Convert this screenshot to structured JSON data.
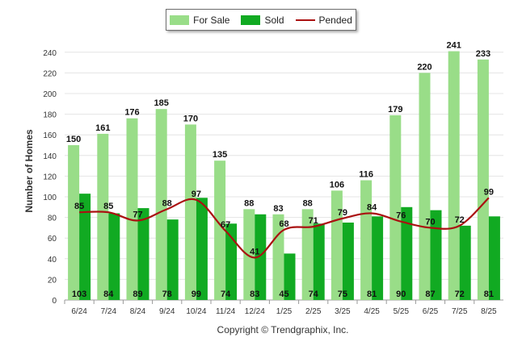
{
  "chart_data": {
    "type": "bar",
    "ylabel": "Number of Homes",
    "ylim": [
      0,
      250
    ],
    "yticks": [
      0,
      20,
      40,
      60,
      80,
      100,
      120,
      140,
      160,
      180,
      200,
      220,
      240
    ],
    "categories": [
      "6/24",
      "7/24",
      "8/24",
      "9/24",
      "10/24",
      "11/24",
      "12/24",
      "1/25",
      "2/25",
      "3/25",
      "4/25",
      "5/25",
      "6/25",
      "7/25",
      "8/25"
    ],
    "series": [
      {
        "name": "For Sale",
        "type": "bar",
        "color": "#99DD88",
        "values": [
          150,
          161,
          176,
          185,
          170,
          135,
          88,
          83,
          88,
          106,
          116,
          179,
          220,
          241,
          233
        ]
      },
      {
        "name": "Sold",
        "type": "bar",
        "color": "#11AA22",
        "values": [
          103,
          84,
          89,
          78,
          99,
          74,
          83,
          45,
          74,
          75,
          81,
          90,
          87,
          72,
          81
        ]
      },
      {
        "name": "Pended",
        "type": "line",
        "color": "#AA1111",
        "values": [
          85,
          85,
          77,
          88,
          97,
          67,
          41,
          68,
          71,
          79,
          84,
          76,
          70,
          72,
          99
        ]
      }
    ],
    "grid": true,
    "legend": "top-center"
  },
  "footer": {
    "copyright": "Copyright © Trendgraphix, Inc."
  }
}
